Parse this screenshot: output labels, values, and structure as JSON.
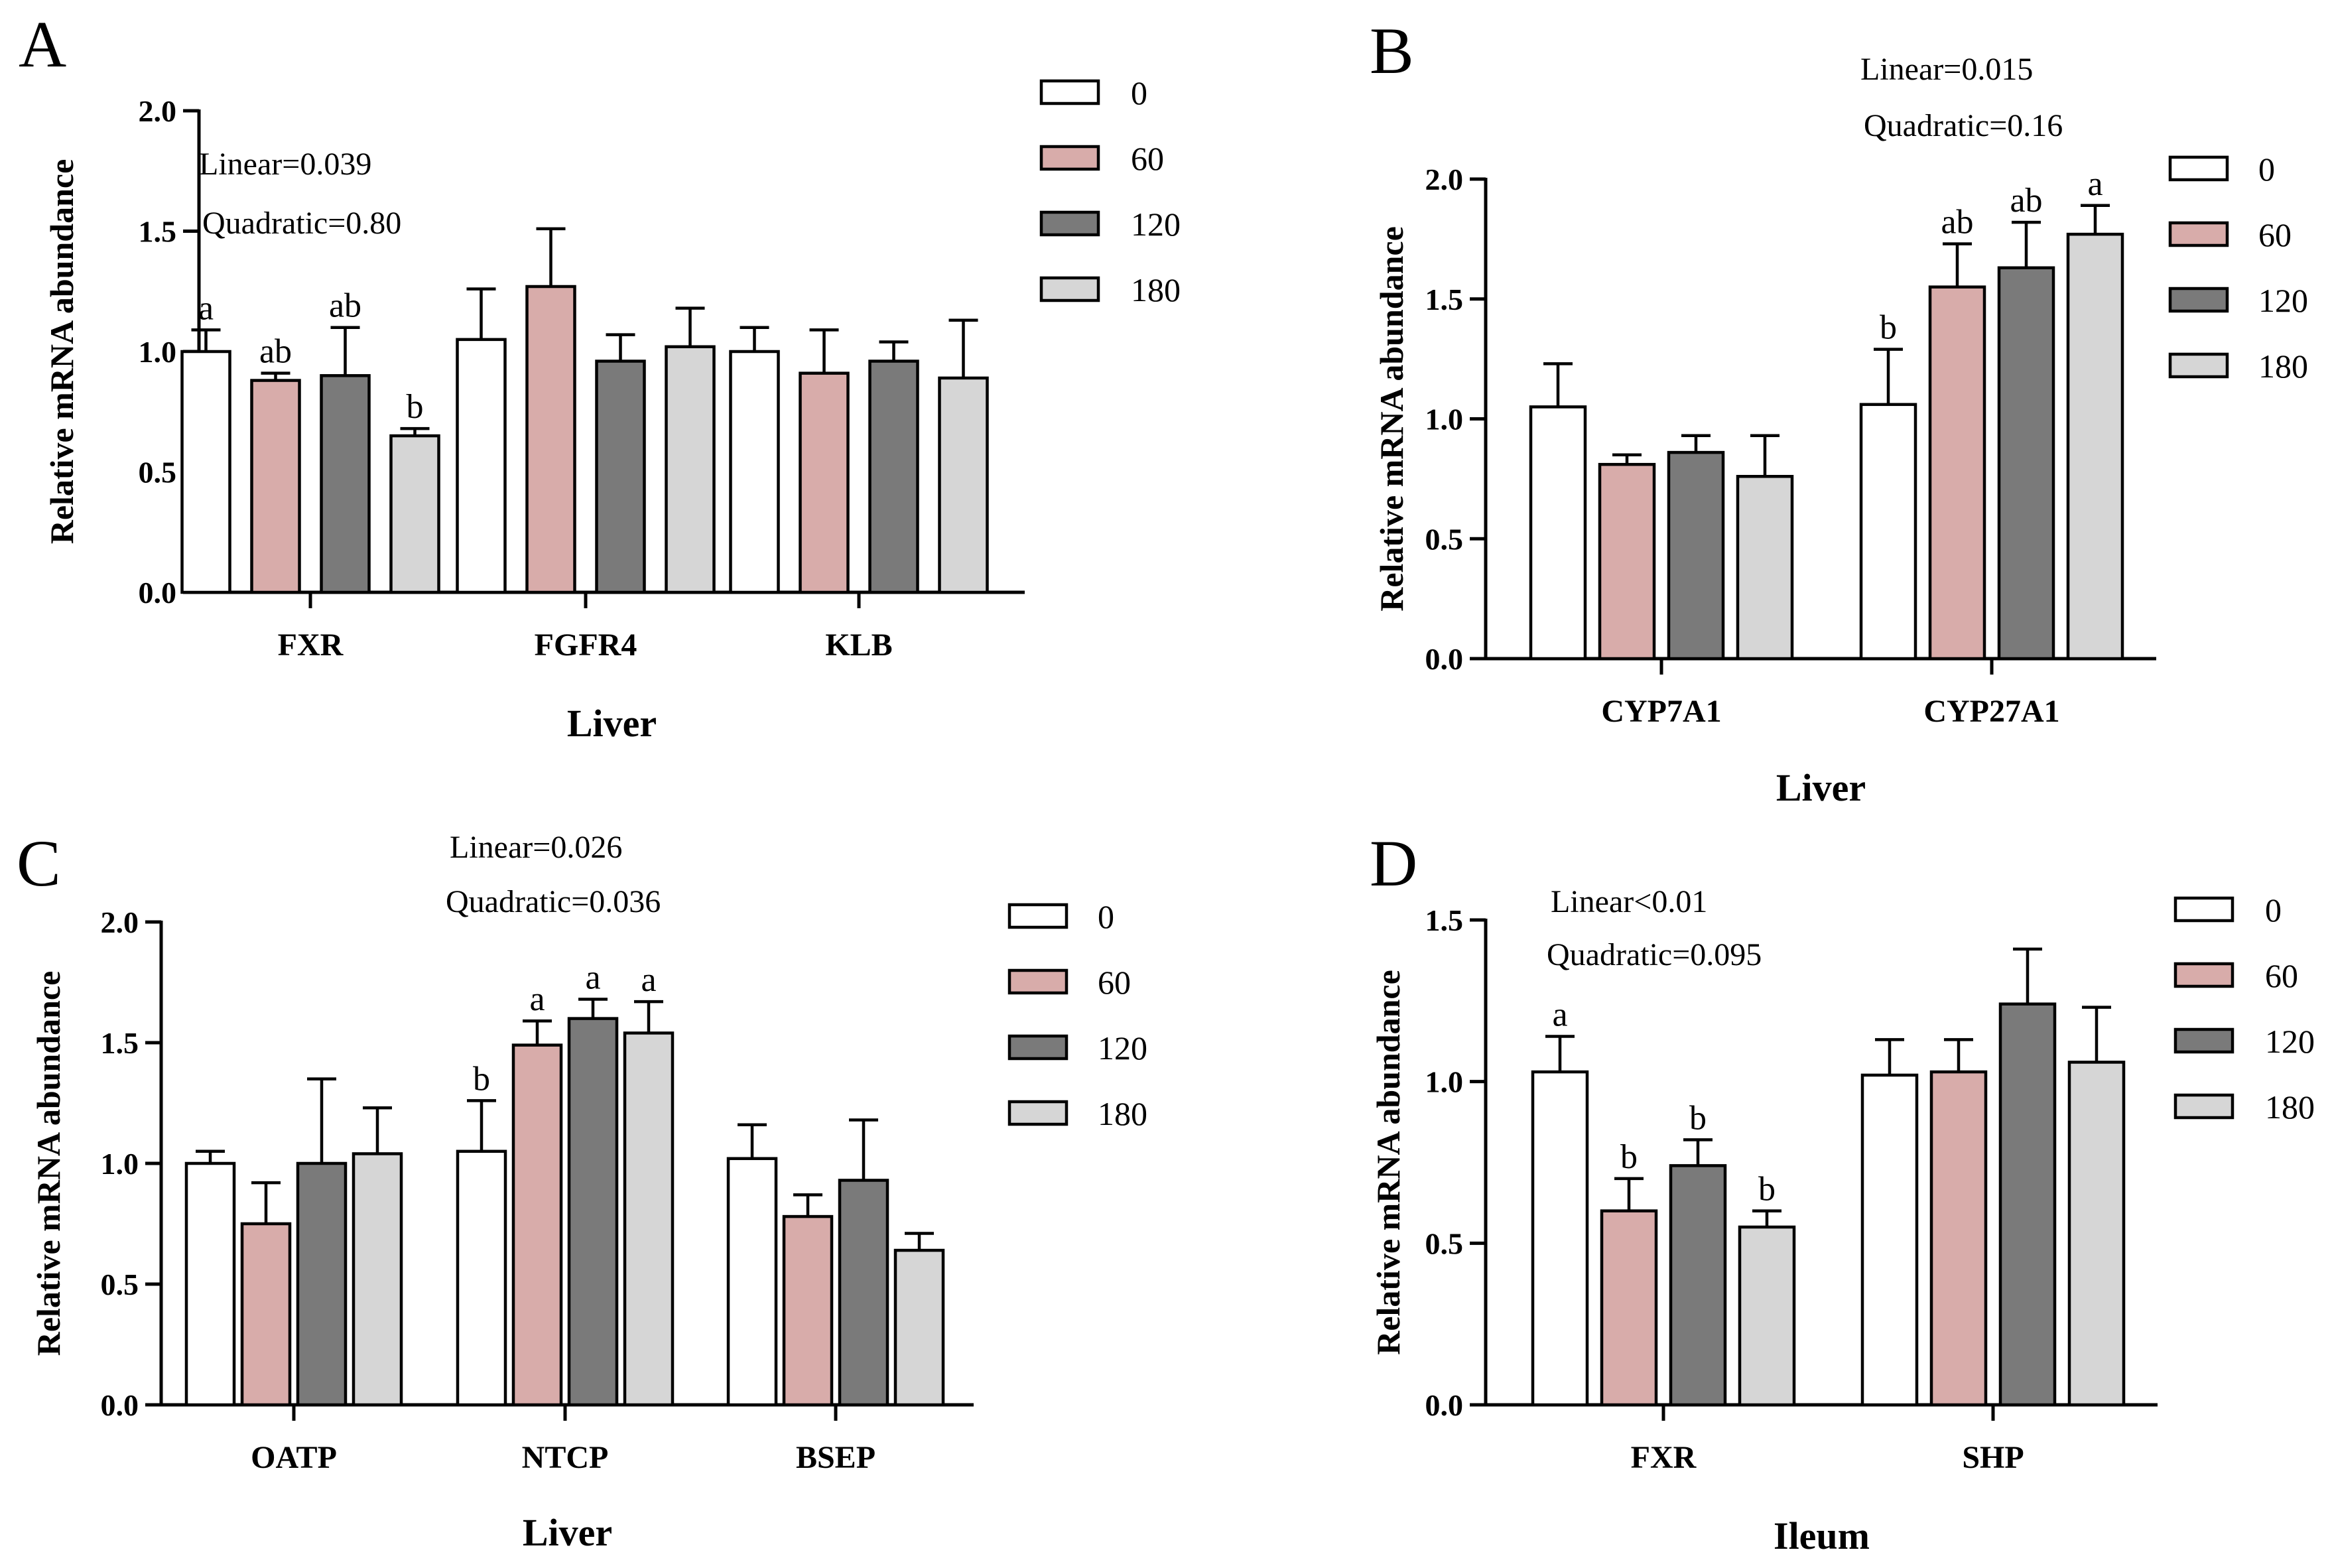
{
  "legend_labels": [
    "0",
    "60",
    "120",
    "180"
  ],
  "colors": [
    "#ffffff",
    "#d8acaa",
    "#7a7a7a",
    "#d6d6d6"
  ],
  "chart_data": [
    {
      "panel": "A",
      "type": "bar",
      "categories": [
        "FXR",
        "FGFR4",
        "KLB"
      ],
      "xlabel": "Liver",
      "ylabel": "Relative mRNA abundance",
      "ylim": [
        0,
        2
      ],
      "yticks": [
        "0.0",
        "0.5",
        "1.0",
        "1.5",
        "2.0"
      ],
      "annotations": [
        "Linear=0.039",
        "Quadratic=0.80"
      ],
      "legend_placement": "right",
      "series": [
        {
          "name": "0",
          "values": [
            1.0,
            1.05,
            1.0
          ],
          "err": [
            0.09,
            0.21,
            0.1
          ],
          "letters": [
            "a",
            "",
            ""
          ]
        },
        {
          "name": "60",
          "values": [
            0.88,
            1.27,
            0.91
          ],
          "err": [
            0.03,
            0.24,
            0.18
          ],
          "letters": [
            "ab",
            "",
            ""
          ]
        },
        {
          "name": "120",
          "values": [
            0.9,
            0.96,
            0.96
          ],
          "err": [
            0.2,
            0.11,
            0.08
          ],
          "letters": [
            "ab",
            "",
            ""
          ]
        },
        {
          "name": "180",
          "values": [
            0.65,
            1.02,
            0.89
          ],
          "err": [
            0.03,
            0.16,
            0.24
          ],
          "letters": [
            "b",
            "",
            ""
          ]
        }
      ]
    },
    {
      "panel": "B",
      "type": "bar",
      "categories": [
        "CYP7A1",
        "CYP27A1"
      ],
      "xlabel": "Liver",
      "ylabel": "Relative mRNA abundance",
      "ylim": [
        0,
        2
      ],
      "yticks": [
        "0.0",
        "0.5",
        "1.0",
        "1.5",
        "2.0"
      ],
      "annotations": [
        "Linear=0.015",
        "Quadratic=0.16"
      ],
      "legend_placement": "right",
      "series": [
        {
          "name": "0",
          "values": [
            1.05,
            1.06
          ],
          "err": [
            0.18,
            0.23
          ],
          "letters": [
            "",
            "b"
          ]
        },
        {
          "name": "60",
          "values": [
            0.81,
            1.55
          ],
          "err": [
            0.04,
            0.18
          ],
          "letters": [
            "",
            "ab"
          ]
        },
        {
          "name": "120",
          "values": [
            0.86,
            1.63
          ],
          "err": [
            0.07,
            0.19
          ],
          "letters": [
            "",
            "ab"
          ]
        },
        {
          "name": "180",
          "values": [
            0.76,
            1.77
          ],
          "err": [
            0.17,
            0.12
          ],
          "letters": [
            "",
            "a"
          ]
        }
      ]
    },
    {
      "panel": "C",
      "type": "bar",
      "categories": [
        "OATP",
        "NTCP",
        "BSEP"
      ],
      "xlabel": "Liver",
      "ylabel": "Relative mRNA abundance",
      "ylim": [
        0,
        2
      ],
      "yticks": [
        "0.0",
        "0.5",
        "1.0",
        "1.5",
        "2.0"
      ],
      "annotations": [
        "Linear=0.026",
        "Quadratic=0.036"
      ],
      "legend_placement": "right",
      "series": [
        {
          "name": "0",
          "values": [
            1.0,
            1.05,
            1.02
          ],
          "err": [
            0.05,
            0.21,
            0.14
          ],
          "letters": [
            "",
            "b",
            ""
          ]
        },
        {
          "name": "60",
          "values": [
            0.75,
            1.49,
            0.78
          ],
          "err": [
            0.17,
            0.1,
            0.09
          ],
          "letters": [
            "",
            "a",
            ""
          ]
        },
        {
          "name": "120",
          "values": [
            1.0,
            1.6,
            0.93
          ],
          "err": [
            0.35,
            0.08,
            0.25
          ],
          "letters": [
            "",
            "a",
            ""
          ]
        },
        {
          "name": "180",
          "values": [
            1.04,
            1.54,
            0.64
          ],
          "err": [
            0.19,
            0.13,
            0.07
          ],
          "letters": [
            "",
            "a",
            ""
          ]
        }
      ]
    },
    {
      "panel": "D",
      "type": "bar",
      "categories": [
        "FXR",
        "SHP"
      ],
      "xlabel": "Ileum",
      "ylabel": "Relative mRNA abundance",
      "ylim": [
        0,
        1.5
      ],
      "yticks": [
        "0.0",
        "0.5",
        "1.0",
        "1.5"
      ],
      "annotations": [
        "Linear<0.01",
        "Quadratic=0.095"
      ],
      "legend_placement": "right",
      "series": [
        {
          "name": "0",
          "values": [
            1.03,
            1.02
          ],
          "err": [
            0.11,
            0.11
          ],
          "letters": [
            "a",
            ""
          ]
        },
        {
          "name": "60",
          "values": [
            0.6,
            1.03
          ],
          "err": [
            0.1,
            0.1
          ],
          "letters": [
            "b",
            ""
          ]
        },
        {
          "name": "120",
          "values": [
            0.74,
            1.24
          ],
          "err": [
            0.08,
            0.17
          ],
          "letters": [
            "b",
            ""
          ]
        },
        {
          "name": "180",
          "values": [
            0.55,
            1.06
          ],
          "err": [
            0.05,
            0.17
          ],
          "letters": [
            "b",
            ""
          ]
        }
      ]
    }
  ]
}
